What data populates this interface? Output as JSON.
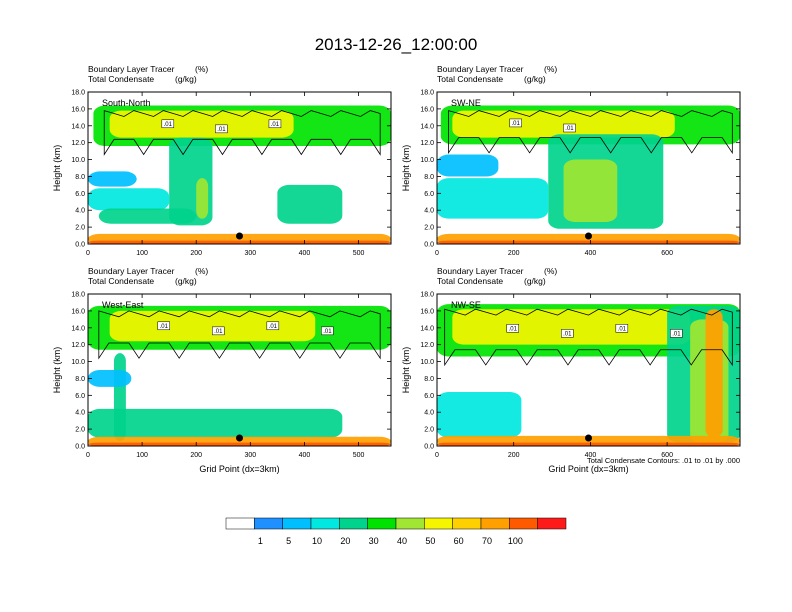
{
  "title": "2013-12-26_12:00:00",
  "chart_data": [
    {
      "type": "heatmap",
      "panel_label": "South-North",
      "title_line1_left": "Boundary Layer Tracer",
      "title_line1_right": "(%)",
      "title_line2_left": "Total Condensate",
      "title_line2_right": "(g/kg)",
      "ylabel": "Height (km)",
      "xlabel": "",
      "xlim": [
        0,
        560
      ],
      "ylim": [
        0,
        18
      ],
      "xticks": [
        0,
        100,
        200,
        300,
        400,
        500
      ],
      "yticks": [
        "0.0",
        "2.0",
        "4.0",
        "6.0",
        "8.0",
        "10.0",
        "12.0",
        "14.0",
        "16.0",
        "18.0"
      ],
      "marker_x": 280,
      "contour_labels": [
        ".01",
        ".01",
        ".01"
      ],
      "plumes": [
        {
          "x0": 10,
          "x1": 560,
          "y0": 11.6,
          "y1": 16.4,
          "v": 30
        },
        {
          "x0": 40,
          "x1": 380,
          "y0": 12.6,
          "y1": 15.8,
          "v": 50
        },
        {
          "x0": 150,
          "x1": 230,
          "y0": 2.2,
          "y1": 12.6,
          "v": 20
        },
        {
          "x0": 200,
          "x1": 222,
          "y0": 3.0,
          "y1": 7.8,
          "v": 40
        },
        {
          "x0": 0,
          "x1": 150,
          "y0": 4.0,
          "y1": 6.6,
          "v": 10
        },
        {
          "x0": 20,
          "x1": 200,
          "y0": 2.4,
          "y1": 4.2,
          "v": 20
        },
        {
          "x0": 0,
          "x1": 90,
          "y0": 6.8,
          "y1": 8.6,
          "v": 5
        },
        {
          "x0": 350,
          "x1": 470,
          "y0": 2.4,
          "y1": 7.0,
          "v": 20
        },
        {
          "x0": 0,
          "x1": 560,
          "y0": 0,
          "y1": 1.2,
          "v": 70
        },
        {
          "x0": 0,
          "x1": 560,
          "y0": 0,
          "y1": 0.4,
          "v": 100
        }
      ]
    },
    {
      "type": "heatmap",
      "panel_label": "SW-NE",
      "title_line1_left": "Boundary Layer Tracer",
      "title_line1_right": "(%)",
      "title_line2_left": "Total Condensate",
      "title_line2_right": "(g/kg)",
      "ylabel": "Height (km)",
      "xlabel": "",
      "xlim": [
        0,
        790
      ],
      "ylim": [
        0,
        18
      ],
      "xticks": [
        0,
        200,
        400,
        600
      ],
      "yticks": [
        "0.0",
        "2.0",
        "4.0",
        "6.0",
        "8.0",
        "10.0",
        "12.0",
        "14.0",
        "16.0",
        "18.0"
      ],
      "marker_x": 395,
      "contour_labels": [
        ".01",
        ".01"
      ],
      "plumes": [
        {
          "x0": 10,
          "x1": 790,
          "y0": 11.8,
          "y1": 16.4,
          "v": 30
        },
        {
          "x0": 40,
          "x1": 620,
          "y0": 12.6,
          "y1": 15.8,
          "v": 50
        },
        {
          "x0": 290,
          "x1": 590,
          "y0": 1.8,
          "y1": 13.0,
          "v": 20
        },
        {
          "x0": 330,
          "x1": 470,
          "y0": 2.6,
          "y1": 10.0,
          "v": 40
        },
        {
          "x0": 0,
          "x1": 290,
          "y0": 3.0,
          "y1": 7.8,
          "v": 10
        },
        {
          "x0": 0,
          "x1": 160,
          "y0": 8.0,
          "y1": 10.6,
          "v": 5
        },
        {
          "x0": 0,
          "x1": 790,
          "y0": 0,
          "y1": 1.2,
          "v": 70
        },
        {
          "x0": 0,
          "x1": 790,
          "y0": 0,
          "y1": 0.4,
          "v": 100
        }
      ]
    },
    {
      "type": "heatmap",
      "panel_label": "West-East",
      "title_line1_left": "Boundary Layer Tracer",
      "title_line1_right": "(%)",
      "title_line2_left": "Total Condensate",
      "title_line2_right": "(g/kg)",
      "ylabel": "Height (km)",
      "xlabel": "Grid Point (dx=3km)",
      "xlim": [
        0,
        560
      ],
      "ylim": [
        0,
        18
      ],
      "xticks": [
        0,
        100,
        200,
        300,
        400,
        500
      ],
      "yticks": [
        "0.0",
        "2.0",
        "4.0",
        "6.0",
        "8.0",
        "10.0",
        "12.0",
        "14.0",
        "16.0",
        "18.0"
      ],
      "marker_x": 280,
      "contour_labels": [
        ".01",
        ".01",
        ".01",
        ".01"
      ],
      "plumes": [
        {
          "x0": 0,
          "x1": 560,
          "y0": 11.4,
          "y1": 16.6,
          "v": 30
        },
        {
          "x0": 40,
          "x1": 420,
          "y0": 12.4,
          "y1": 16.0,
          "v": 50
        },
        {
          "x0": 48,
          "x1": 70,
          "y0": 0.6,
          "y1": 11.0,
          "v": 20
        },
        {
          "x0": 0,
          "x1": 80,
          "y0": 7.0,
          "y1": 9.0,
          "v": 5
        },
        {
          "x0": 0,
          "x1": 470,
          "y0": 1.0,
          "y1": 4.4,
          "v": 20
        },
        {
          "x0": 0,
          "x1": 560,
          "y0": 0,
          "y1": 1.1,
          "v": 70
        },
        {
          "x0": 0,
          "x1": 560,
          "y0": 0,
          "y1": 0.4,
          "v": 100
        }
      ]
    },
    {
      "type": "heatmap",
      "panel_label": "NW-SE",
      "title_line1_left": "Boundary Layer Tracer",
      "title_line1_right": "(%)",
      "title_line2_left": "Total Condensate",
      "title_line2_right": "(g/kg)",
      "ylabel": "Height (km)",
      "xlabel": "Grid Point (dx=3km)",
      "xlim": [
        0,
        790
      ],
      "ylim": [
        0,
        18
      ],
      "xticks": [
        0,
        200,
        400,
        600
      ],
      "yticks": [
        "0.0",
        "2.0",
        "4.0",
        "6.0",
        "8.0",
        "10.0",
        "12.0",
        "14.0",
        "16.0",
        "18.0"
      ],
      "marker_x": 395,
      "contour_labels": [
        ".01",
        ".01",
        ".01",
        ".01"
      ],
      "plumes": [
        {
          "x0": 0,
          "x1": 790,
          "y0": 10.6,
          "y1": 16.8,
          "v": 30
        },
        {
          "x0": 40,
          "x1": 660,
          "y0": 12.0,
          "y1": 16.2,
          "v": 50
        },
        {
          "x0": 600,
          "x1": 790,
          "y0": 0.4,
          "y1": 16.6,
          "v": 20
        },
        {
          "x0": 660,
          "x1": 760,
          "y0": 0.4,
          "y1": 15.0,
          "v": 40
        },
        {
          "x0": 700,
          "x1": 745,
          "y0": 1.0,
          "y1": 16.2,
          "v": 70
        },
        {
          "x0": 0,
          "x1": 220,
          "y0": 1.0,
          "y1": 6.4,
          "v": 10
        },
        {
          "x0": 0,
          "x1": 790,
          "y0": 0,
          "y1": 1.2,
          "v": 70
        },
        {
          "x0": 0,
          "x1": 790,
          "y0": 0,
          "y1": 0.4,
          "v": 100
        }
      ]
    }
  ],
  "contour_note": "Total Condensate Contours: .01 to .01 by .000",
  "colorbar": {
    "colors": [
      "#ffffff",
      "#1e90ff",
      "#00bfff",
      "#00e8e0",
      "#00d38c",
      "#00e300",
      "#a0e632",
      "#f5f500",
      "#ffd000",
      "#ffa000",
      "#ff5a00",
      "#ff1a1a"
    ],
    "labels": [
      "1",
      "5",
      "10",
      "20",
      "30",
      "40",
      "50",
      "60",
      "70",
      "100"
    ]
  }
}
